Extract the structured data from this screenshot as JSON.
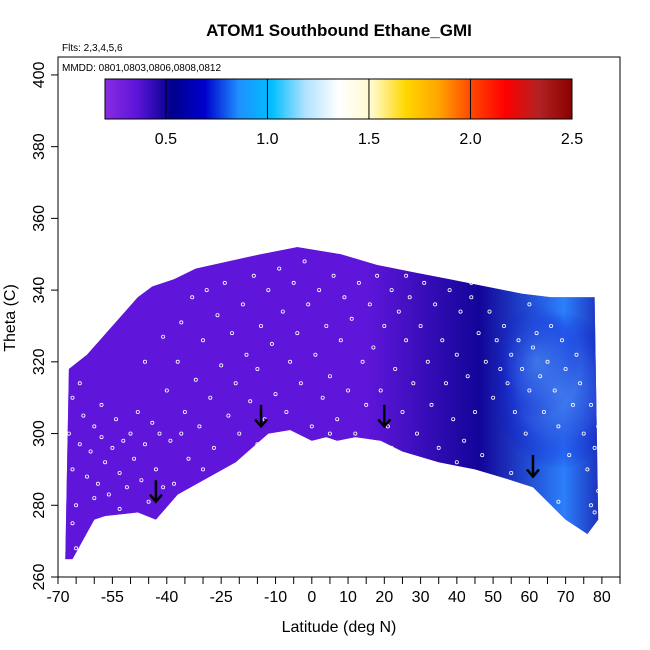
{
  "chart_data": {
    "type": "heatmap",
    "title": "ATOM1 Southbound Ethane_GMI",
    "subtitle_flights": "Flts: 2,3,4,5,6",
    "subtitle_dates": "MMDD: 0801,0803,0806,0808,0812",
    "xlabel": "Latitude (deg N)",
    "ylabel": "Theta (C)",
    "xlim": [
      -70,
      85
    ],
    "ylim": [
      260,
      405
    ],
    "x_ticks": [
      -70,
      -65,
      -60,
      -55,
      -50,
      -45,
      -40,
      -35,
      -30,
      -25,
      -20,
      -15,
      -10,
      -5,
      0,
      5,
      10,
      15,
      20,
      25,
      30,
      35,
      40,
      45,
      50,
      55,
      60,
      65,
      70,
      75,
      80,
      85
    ],
    "x_tick_labels": [
      {
        "x": -70,
        "label": "-70"
      },
      {
        "x": -55,
        "label": "-55"
      },
      {
        "x": -40,
        "label": "-40"
      },
      {
        "x": -25,
        "label": "-25"
      },
      {
        "x": -10,
        "label": "-10"
      },
      {
        "x": 0,
        "label": "0"
      },
      {
        "x": 10,
        "label": "10"
      },
      {
        "x": 20,
        "label": "20"
      },
      {
        "x": 30,
        "label": "30"
      },
      {
        "x": 40,
        "label": "40"
      },
      {
        "x": 50,
        "label": "50"
      },
      {
        "x": 60,
        "label": "60"
      },
      {
        "x": 70,
        "label": "70"
      },
      {
        "x": 80,
        "label": "80"
      }
    ],
    "y_ticks": [
      260,
      280,
      300,
      320,
      340,
      360,
      380,
      400
    ],
    "y_tick_labels": [
      "260",
      "280",
      "300",
      "320",
      "340",
      "360",
      "380",
      "400"
    ],
    "colorbar": {
      "range": [
        0.2,
        2.5
      ],
      "ticks": [
        0.5,
        1.0,
        1.5,
        2.0,
        2.5
      ],
      "tick_labels": [
        "0.5",
        "1.0",
        "1.5",
        "2.0",
        "2.5"
      ],
      "colors": [
        "#8a2be2",
        "#5a14d8",
        "#00008b",
        "#0000cd",
        "#1e90ff",
        "#00bfff",
        "#b0e2ff",
        "#ffffff",
        "#fffacd",
        "#ffd700",
        "#ffa500",
        "#ff4500",
        "#ff0000",
        "#b22222",
        "#8b0000"
      ]
    },
    "field_values": {
      "south_tropics": 0.3,
      "northern_mid_latitudes": 0.45,
      "high_latitude_max": 0.9
    },
    "domain_top": [
      [
        -67,
        318
      ],
      [
        -62,
        322
      ],
      [
        -55,
        330
      ],
      [
        -48,
        338
      ],
      [
        -44,
        341
      ],
      [
        -38,
        343
      ],
      [
        -32,
        346
      ],
      [
        -23,
        348
      ],
      [
        -14,
        350
      ],
      [
        -4,
        352
      ],
      [
        8,
        350
      ],
      [
        18,
        347
      ],
      [
        28,
        345
      ],
      [
        38,
        343
      ],
      [
        48,
        341
      ],
      [
        58,
        339
      ],
      [
        66,
        338
      ],
      [
        78,
        338
      ]
    ],
    "domain_bottom": [
      [
        79,
        276
      ],
      [
        76,
        272
      ],
      [
        70,
        276
      ],
      [
        61,
        285
      ],
      [
        55,
        287
      ],
      [
        45,
        290
      ],
      [
        35,
        292
      ],
      [
        25,
        295
      ],
      [
        19,
        298
      ],
      [
        12,
        299
      ],
      [
        7,
        298
      ],
      [
        4,
        299
      ],
      [
        0,
        298
      ],
      [
        -6,
        301
      ],
      [
        -12,
        300
      ],
      [
        -21,
        292
      ],
      [
        -37,
        283
      ],
      [
        -43,
        276
      ],
      [
        -48,
        278
      ],
      [
        -57,
        277
      ],
      [
        -60,
        276
      ],
      [
        -66,
        265
      ],
      [
        -68,
        265
      ]
    ],
    "arrows": [
      {
        "lat": -43,
        "theta": 282
      },
      {
        "lat": -14,
        "theta": 303
      },
      {
        "lat": 20,
        "theta": 303
      },
      {
        "lat": 61,
        "theta": 289
      }
    ],
    "sample_points": [
      [
        -67,
        300
      ],
      [
        -66,
        310
      ],
      [
        -66,
        290
      ],
      [
        -65,
        280
      ],
      [
        -64,
        297
      ],
      [
        -63,
        305
      ],
      [
        -62,
        288
      ],
      [
        -61,
        295
      ],
      [
        -60,
        302
      ],
      [
        -59,
        286
      ],
      [
        -58,
        299
      ],
      [
        -57,
        292
      ],
      [
        -56,
        283
      ],
      [
        -55,
        296
      ],
      [
        -54,
        304
      ],
      [
        -53,
        289
      ],
      [
        -52,
        298
      ],
      [
        -51,
        285
      ],
      [
        -50,
        300
      ],
      [
        -49,
        293
      ],
      [
        -48,
        306
      ],
      [
        -47,
        287
      ],
      [
        -46,
        297
      ],
      [
        -45,
        281
      ],
      [
        -44,
        303
      ],
      [
        -43,
        290
      ],
      [
        -42,
        300
      ],
      [
        -41,
        327
      ],
      [
        -40,
        312
      ],
      [
        -39,
        298
      ],
      [
        -38,
        286
      ],
      [
        -37,
        320
      ],
      [
        -36,
        331
      ],
      [
        -35,
        306
      ],
      [
        -34,
        293
      ],
      [
        -33,
        338
      ],
      [
        -32,
        315
      ],
      [
        -31,
        302
      ],
      [
        -30,
        326
      ],
      [
        -29,
        340
      ],
      [
        -28,
        310
      ],
      [
        -27,
        296
      ],
      [
        -26,
        333
      ],
      [
        -25,
        319
      ],
      [
        -24,
        342
      ],
      [
        -23,
        305
      ],
      [
        -22,
        328
      ],
      [
        -21,
        314
      ],
      [
        -20,
        300
      ],
      [
        -19,
        336
      ],
      [
        -18,
        322
      ],
      [
        -17,
        309
      ],
      [
        -16,
        344
      ],
      [
        -15,
        318
      ],
      [
        -14,
        330
      ],
      [
        -13,
        304
      ],
      [
        -12,
        340
      ],
      [
        -11,
        325
      ],
      [
        -10,
        311
      ],
      [
        -9,
        346
      ],
      [
        -8,
        334
      ],
      [
        -7,
        306
      ],
      [
        -6,
        320
      ],
      [
        -5,
        342
      ],
      [
        -4,
        328
      ],
      [
        -3,
        314
      ],
      [
        -2,
        348
      ],
      [
        -1,
        336
      ],
      [
        0,
        302
      ],
      [
        1,
        322
      ],
      [
        2,
        340
      ],
      [
        3,
        310
      ],
      [
        4,
        330
      ],
      [
        5,
        316
      ],
      [
        6,
        344
      ],
      [
        7,
        304
      ],
      [
        8,
        326
      ],
      [
        9,
        338
      ],
      [
        10,
        312
      ],
      [
        11,
        332
      ],
      [
        12,
        300
      ],
      [
        13,
        342
      ],
      [
        14,
        320
      ],
      [
        15,
        308
      ],
      [
        16,
        336
      ],
      [
        17,
        324
      ],
      [
        18,
        344
      ],
      [
        19,
        312
      ],
      [
        20,
        330
      ],
      [
        21,
        302
      ],
      [
        22,
        340
      ],
      [
        23,
        318
      ],
      [
        24,
        334
      ],
      [
        25,
        306
      ],
      [
        26,
        326
      ],
      [
        27,
        338
      ],
      [
        28,
        314
      ],
      [
        29,
        300
      ],
      [
        30,
        330
      ],
      [
        31,
        342
      ],
      [
        32,
        320
      ],
      [
        33,
        308
      ],
      [
        34,
        336
      ],
      [
        35,
        296
      ],
      [
        36,
        326
      ],
      [
        37,
        314
      ],
      [
        38,
        340
      ],
      [
        39,
        304
      ],
      [
        40,
        322
      ],
      [
        41,
        334
      ],
      [
        42,
        298
      ],
      [
        43,
        316
      ],
      [
        44,
        338
      ],
      [
        45,
        306
      ],
      [
        46,
        328
      ],
      [
        47,
        294
      ],
      [
        48,
        320
      ],
      [
        49,
        334
      ],
      [
        50,
        310
      ],
      [
        51,
        326
      ],
      [
        52,
        318
      ],
      [
        53,
        330
      ],
      [
        54,
        314
      ],
      [
        55,
        322
      ],
      [
        56,
        306
      ],
      [
        57,
        326
      ],
      [
        58,
        318
      ],
      [
        59,
        300
      ],
      [
        60,
        312
      ],
      [
        61,
        324
      ],
      [
        62,
        328
      ],
      [
        63,
        316
      ],
      [
        64,
        306
      ],
      [
        65,
        320
      ],
      [
        66,
        330
      ],
      [
        67,
        312
      ],
      [
        68,
        302
      ],
      [
        69,
        326
      ],
      [
        70,
        318
      ],
      [
        71,
        294
      ],
      [
        72,
        308
      ],
      [
        73,
        322
      ],
      [
        74,
        314
      ],
      [
        75,
        300
      ],
      [
        76,
        290
      ],
      [
        77,
        308
      ],
      [
        78,
        296
      ],
      [
        79,
        284
      ],
      [
        79,
        302
      ],
      [
        78,
        278
      ],
      [
        -66,
        275
      ],
      [
        -65,
        268
      ],
      [
        -60,
        282
      ],
      [
        -53,
        279
      ],
      [
        -41,
        285
      ],
      [
        -30,
        290
      ],
      [
        -15,
        297
      ],
      [
        5,
        300
      ],
      [
        22,
        296
      ],
      [
        40,
        292
      ],
      [
        55,
        289
      ],
      [
        68,
        281
      ],
      [
        77,
        280
      ],
      [
        -64,
        314
      ],
      [
        -58,
        308
      ],
      [
        -46,
        320
      ],
      [
        -36,
        300
      ],
      [
        26,
        344
      ],
      [
        44,
        342
      ],
      [
        60,
        336
      ]
    ]
  }
}
